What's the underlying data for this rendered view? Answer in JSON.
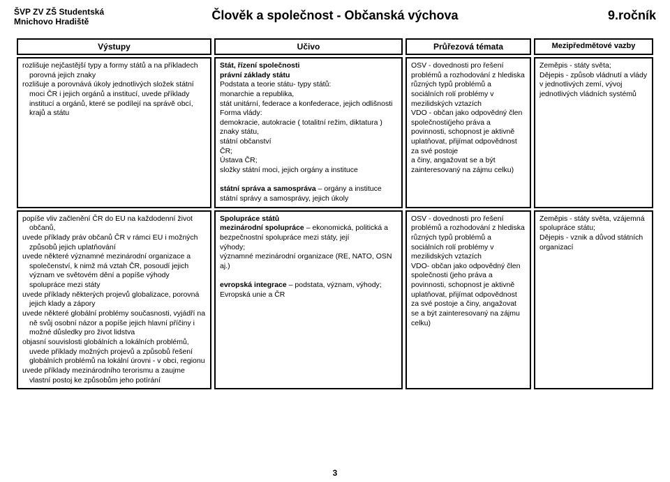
{
  "header": {
    "school_line1": "ŠVP ZV ZŠ Studentská",
    "school_line2": "Mnichovo Hradiště",
    "subject": "Člověk a společnost - Občanská výchova",
    "grade": "9.ročník"
  },
  "columns": {
    "c1": "Výstupy",
    "c2": "Učivo",
    "c3": "Průřezová témata",
    "c4": "Mezipředmětové vazby"
  },
  "row1": {
    "out1": "rozlišuje nejčastější typy a formy států a na příkladech porovná jejich znaky",
    "out2": "rozlišuje a porovnává úkoly jednotlivých složek státní moci ČR i jejich orgánů a institucí, uvede příklady institucí a orgánů, které se podílejí na správě obcí, krajů a státu",
    "uc_title": "Stát, řízení společnosti",
    "uc1": "právní základy státu",
    "uc2": "Podstata a teorie státu- typy států:",
    "uc3": "monarchie a republika,",
    "uc4": "stát unitární, federace a konfederace, jejich odlišnosti",
    "uc5": "Forma vlády:",
    "uc6": "demokracie, autokracie ( totalitní režim, diktatura )",
    "uc7": "znaky státu,",
    "uc8": "státní občanství",
    "uc9": "ČR;",
    "uc10": "Ústava ČR;",
    "uc11": "složky státní moci, jejich orgány a instituce",
    "uc_sub_b": "státní správa a samospráva",
    "uc_sub_r": " – orgány a instituce státní správy a samosprávy, jejich úkoly",
    "pr1": "OSV - dovednosti pro řešení problémů a rozhodování z hlediska různých typů problémů a sociálních rolí problémy v mezilidských vztazích",
    "pr2": "VDO - občan jako odpovědný člen společnosti(jeho práva a povinnosti, schopnost je aktivně uplatňovat, přijímat odpovědnost za své postoje",
    "pr3": " a činy, angažovat se a být zainteresovaný na zájmu celku)",
    "mez1": "Zeměpis - státy světa;",
    "mez2": "Dějepis - způsob vládnutí a vlády v jednotlivých zemí, vývoj jednotlivých vládních systémů"
  },
  "row2": {
    "out1": "popíše vliv začlenění ČR do EU na každodenní život občanů,",
    "out2": "uvede příklady práv občanů ČR v rámci EU i možných způsobů jejich uplatňování",
    "out3": "uvede některé významné mezinárodní organizace a společenství, k nimž má vztah ČR, posoudí jejich význam ve světovém dění a popíše výhody spolupráce mezi státy",
    "out4": "uvede příklady některých projevů globalizace, porovná jejich klady a zápory",
    "out5": "uvede některé globální problémy současnosti, vyjádří na ně svůj osobní názor a popíše jejich hlavní příčiny i možné důsledky pro život lidstva",
    "out6": "objasní souvislosti globálních a lokálních problémů, uvede příklady možných projevů a způsobů řešení globálních problémů na lokální úrovni - v obci, regionu",
    "out7": "uvede příklady mezinárodního terorismu a zaujme vlastní postoj ke způsobům jeho potírání",
    "uc_title": "Spolupráce států",
    "uc1b": "mezinárodní spolupráce",
    "uc1r": " – ekonomická, politická a bezpečnostní spolupráce mezi státy, její",
    "uc2": "výhody;",
    "uc3": "významné mezinárodní organizace (RE, NATO, OSN aj.)",
    "uc4b": "evropská integrace",
    "uc4r": " – podstata, význam, výhody; Evropská unie a ČR",
    "pr1": "OSV - dovednosti pro řešení problémů a rozhodování z hlediska různých typů problémů a sociálních rolí problémy v mezilidských vztazích",
    "pr2": "VDO- občan jako odpovědný člen společnosti (jeho práva a povinnosti, schopnost je aktivně uplatňovat, přijímat odpovědnost za své postoje a činy, angažovat se a být zainteresovaný na zájmu celku)",
    "mez1": "Zeměpis - státy světa, vzájemná spolupráce státu;",
    "mez2": "Dějepis - vznik a důvod státních organizací"
  },
  "page_number": "3"
}
